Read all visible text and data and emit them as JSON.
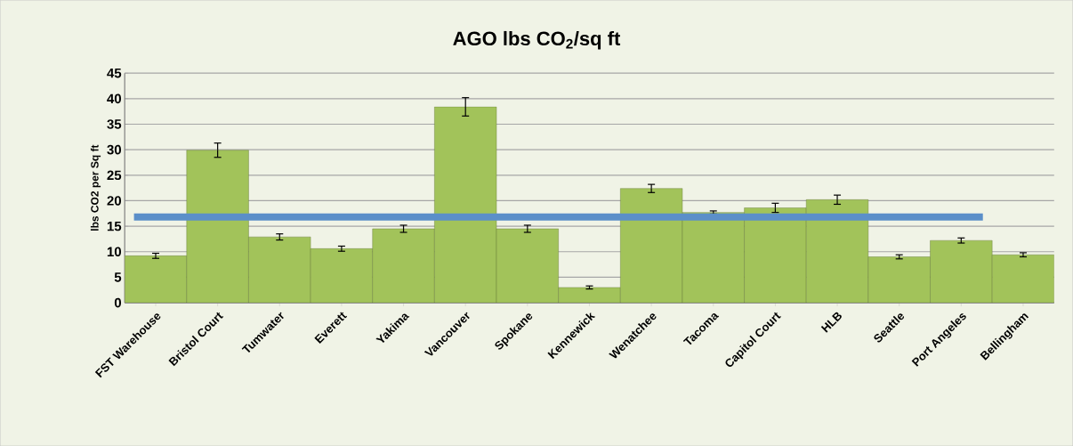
{
  "chart_data": {
    "type": "bar",
    "title": "AGO lbs CO$_{2}$/sq ft",
    "ylabel": "lbs CO2 per Sq ft",
    "categories": [
      "FST Warehouse",
      "Bristol Court",
      "Tumwater",
      "Everett",
      "Yakima",
      "Vancouver",
      "Spokane",
      "Kennewick",
      "Wenatchee",
      "Tacoma",
      "Capitol Court",
      "HLB",
      "Seattle",
      "Port Angeles",
      "Bellingham"
    ],
    "values": [
      9.2,
      29.9,
      12.9,
      10.6,
      14.5,
      38.4,
      14.5,
      3.0,
      22.4,
      17.7,
      18.6,
      20.2,
      9.0,
      12.2,
      9.4
    ],
    "errors": [
      0.5,
      1.4,
      0.6,
      0.5,
      0.7,
      1.8,
      0.7,
      0.3,
      0.8,
      0.3,
      0.9,
      0.9,
      0.4,
      0.5,
      0.4
    ],
    "color": "#a2c35a",
    "ylim": [
      0,
      45
    ],
    "yticks": [
      0,
      5,
      10,
      15,
      20,
      25,
      30,
      35,
      40,
      45
    ],
    "grid": "y",
    "ref_lines": [
      {
        "axis": "y",
        "value": 16.8,
        "color": "#5b8fc9"
      }
    ]
  }
}
